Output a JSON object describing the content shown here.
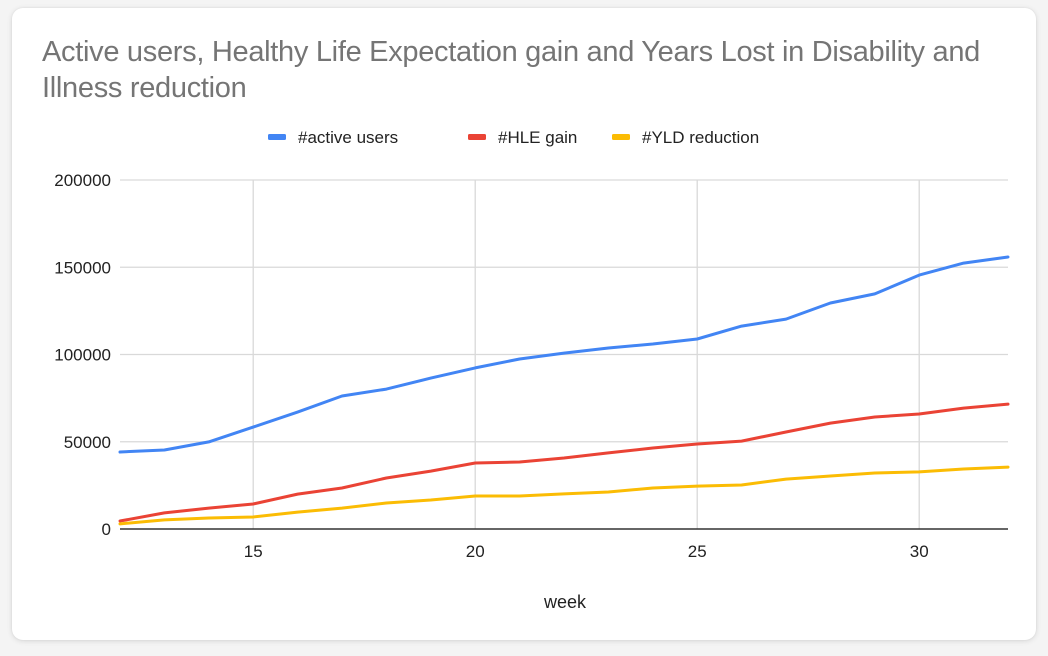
{
  "chart_data": {
    "type": "line",
    "title": "Active users, Healthy Life Expectation gain and Years Lost in Disability and Illness reduction",
    "xlabel": "week",
    "ylabel": "",
    "x": [
      12,
      13,
      14,
      15,
      16,
      17,
      18,
      19,
      20,
      21,
      22,
      23,
      24,
      25,
      26,
      27,
      28,
      29,
      30,
      31,
      32
    ],
    "xlim": [
      12,
      32
    ],
    "ylim": [
      0,
      200000
    ],
    "xticks": [
      15,
      20,
      25,
      30
    ],
    "xtick_labels": [
      "15",
      "20",
      "25",
      "30"
    ],
    "yticks": [
      0,
      50000,
      100000,
      150000,
      200000
    ],
    "ytick_labels": [
      "0",
      "50000",
      "100000",
      "150000",
      "200000"
    ],
    "grid": true,
    "legend_position": "top",
    "series": [
      {
        "name": "#active users",
        "color": "#4285f4",
        "values": [
          44100,
          45300,
          49900,
          58400,
          67000,
          76200,
          80200,
          86500,
          92300,
          97400,
          100800,
          103700,
          106000,
          108900,
          116300,
          120300,
          129500,
          134700,
          145500,
          152400,
          155900
        ]
      },
      {
        "name": "#HLE gain",
        "color": "#ea4335",
        "values": [
          4600,
          9200,
          12000,
          14300,
          20000,
          23500,
          29200,
          33200,
          37800,
          38400,
          40700,
          43600,
          46400,
          48700,
          50400,
          55600,
          60700,
          64200,
          65900,
          69300,
          71600
        ]
      },
      {
        "name": "#YLD reduction",
        "color": "#fbbc04",
        "values": [
          2900,
          5200,
          6300,
          6900,
          9700,
          12000,
          14900,
          16600,
          18900,
          18900,
          20100,
          21200,
          23500,
          24600,
          25200,
          28600,
          30400,
          32100,
          32700,
          34400,
          35500
        ]
      }
    ]
  }
}
